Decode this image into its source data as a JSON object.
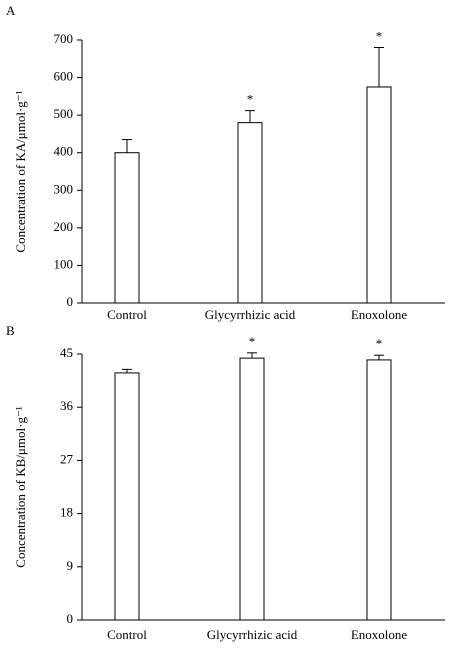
{
  "chart_data": [
    {
      "type": "bar",
      "panel_label": "A",
      "y_label": "Concentration of KA/μmol·g⁻¹",
      "categories": [
        "Control",
        "Glycyrrhizic acid",
        "Enoxolone"
      ],
      "values": [
        400,
        480,
        575
      ],
      "errors": [
        35,
        32,
        105
      ],
      "color": "#ffffff",
      "annotations": [
        {
          "x": "Glycyrrhizic acid",
          "text": "*"
        },
        {
          "x": "Enoxolone",
          "text": "*"
        }
      ],
      "ylim": [
        0,
        700
      ],
      "yticks": [
        0,
        100,
        200,
        300,
        400,
        500,
        600,
        700
      ]
    },
    {
      "type": "bar",
      "panel_label": "B",
      "y_label": "Concentration of KB/μmol·g⁻¹",
      "categories": [
        "Control",
        "Glycyrrhizic acid",
        "Enoxolone"
      ],
      "values": [
        41.8,
        44.3,
        44.0
      ],
      "errors": [
        0.6,
        0.9,
        0.8
      ],
      "color": "#ffffff",
      "annotations": [
        {
          "x": "Glycyrrhizic acid",
          "text": "*"
        },
        {
          "x": "Enoxolone",
          "text": "*"
        }
      ],
      "ylim": [
        0,
        45
      ],
      "yticks": [
        0,
        9,
        18,
        27,
        36,
        45
      ]
    }
  ]
}
